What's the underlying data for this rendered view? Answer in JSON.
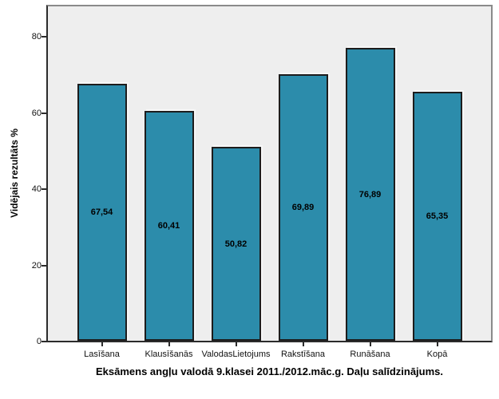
{
  "chart_data": {
    "type": "bar",
    "title": "Eksāmens angļu valodā 9.klasei 2011./2012.māc.g. Daļu salīdzinājums.",
    "xlabel": "",
    "ylabel": "Vidējais rezultāts %",
    "categories": [
      "Lasīšana",
      "Klausīšanās",
      "ValodasLietojums",
      "Rakstīšana",
      "Runāšana",
      "Kopā"
    ],
    "values": [
      67.54,
      60.41,
      50.82,
      69.89,
      76.89,
      65.35
    ],
    "value_labels": [
      "67,54",
      "60,41",
      "50,82",
      "69,89",
      "76,89",
      "65,35"
    ],
    "y_ticks": [
      0,
      20,
      40,
      60,
      80
    ],
    "ylim": [
      0,
      88.6
    ],
    "grid": false,
    "legend": "none",
    "bar_color": "#2C8CAB",
    "bar_border_color": "#1C1C1C",
    "plot_bg": "#EEEEEE",
    "frame_border_color": "#8A8A8A",
    "axis_color": "#2B2B2B"
  }
}
